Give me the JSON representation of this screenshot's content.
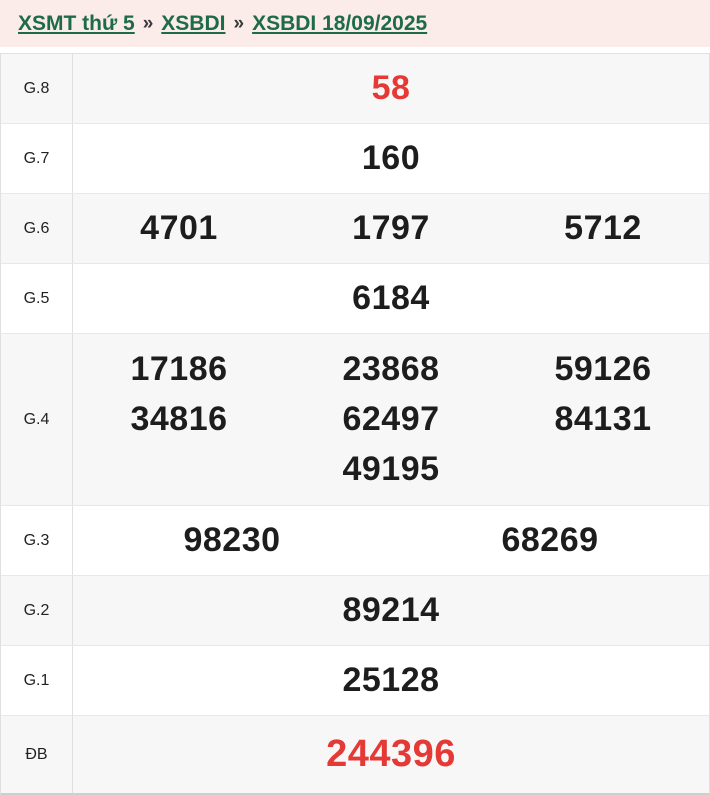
{
  "breadcrumb": {
    "separator": "»",
    "links": [
      {
        "label": "XSMT thứ 5"
      },
      {
        "label": "XSBDI"
      },
      {
        "label": "XSBDI 18/09/2025"
      }
    ]
  },
  "colors": {
    "header_bg": "#fbecea",
    "link_green": "#1e6b47",
    "number_red": "#e53935",
    "row_alt_bg": "#f7f7f7",
    "number_dark": "#1d1d1d"
  },
  "table": {
    "rows": [
      {
        "label": "G.8",
        "highlight": true,
        "lines": [
          [
            "58"
          ]
        ]
      },
      {
        "label": "G.7",
        "highlight": false,
        "lines": [
          [
            "160"
          ]
        ]
      },
      {
        "label": "G.6",
        "highlight": false,
        "lines": [
          [
            "4701",
            "1797",
            "5712"
          ]
        ]
      },
      {
        "label": "G.5",
        "highlight": false,
        "lines": [
          [
            "6184"
          ]
        ]
      },
      {
        "label": "G.4",
        "highlight": false,
        "lines": [
          [
            "17186",
            "23868",
            "59126"
          ],
          [
            "34816",
            "62497",
            "84131"
          ],
          [
            "",
            "49195",
            ""
          ]
        ]
      },
      {
        "label": "G.3",
        "highlight": false,
        "lines": [
          [
            "98230",
            "68269"
          ]
        ]
      },
      {
        "label": "G.2",
        "highlight": false,
        "lines": [
          [
            "89214"
          ]
        ]
      },
      {
        "label": "G.1",
        "highlight": false,
        "lines": [
          [
            "25128"
          ]
        ]
      },
      {
        "label": "ĐB",
        "highlight": true,
        "lines": [
          [
            "244396"
          ]
        ]
      }
    ]
  }
}
